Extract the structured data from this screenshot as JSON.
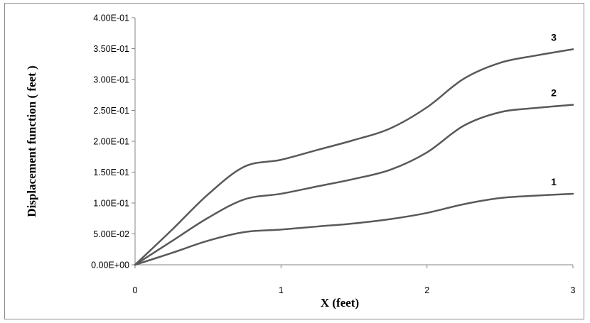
{
  "chart_data": {
    "type": "line",
    "title": "",
    "xlabel": "X (feet)",
    "ylabel": "Displacement function  ( feet )",
    "xlim": [
      0,
      3
    ],
    "ylim": [
      0,
      0.4
    ],
    "x_ticks": [
      0,
      1,
      2,
      3
    ],
    "x_tick_labels": [
      "0",
      "1",
      "2",
      "3"
    ],
    "y_ticks": [
      0,
      0.05,
      0.1,
      0.15,
      0.2,
      0.25,
      0.3,
      0.35,
      0.4
    ],
    "y_tick_labels": [
      "0.00E+00",
      "5.00E-02",
      "1.00E-01",
      "1.50E-01",
      "2.00E-01",
      "2.50E-01",
      "3.00E-01",
      "3.50E-01",
      "4.00E-01"
    ],
    "grid": false,
    "legend": "none (inline curve labels)",
    "line_color": "#595959",
    "series": [
      {
        "name": "1",
        "x": [
          0,
          0.25,
          0.5,
          0.75,
          1.0,
          1.25,
          1.5,
          1.75,
          2.0,
          2.25,
          2.5,
          2.75,
          3.0
        ],
        "values": [
          0,
          0.019,
          0.039,
          0.053,
          0.057,
          0.062,
          0.067,
          0.074,
          0.084,
          0.098,
          0.108,
          0.112,
          0.115
        ]
      },
      {
        "name": "2",
        "x": [
          0,
          0.25,
          0.5,
          0.75,
          1.0,
          1.25,
          1.5,
          1.75,
          2.0,
          2.25,
          2.5,
          2.75,
          3.0
        ],
        "values": [
          0,
          0.038,
          0.076,
          0.106,
          0.115,
          0.127,
          0.139,
          0.154,
          0.182,
          0.225,
          0.247,
          0.254,
          0.259
        ]
      },
      {
        "name": "3",
        "x": [
          0,
          0.25,
          0.5,
          0.75,
          1.0,
          1.25,
          1.5,
          1.75,
          2.0,
          2.25,
          2.5,
          2.75,
          3.0
        ],
        "values": [
          0,
          0.056,
          0.114,
          0.159,
          0.17,
          0.186,
          0.202,
          0.221,
          0.255,
          0.301,
          0.327,
          0.339,
          0.349
        ]
      }
    ]
  }
}
